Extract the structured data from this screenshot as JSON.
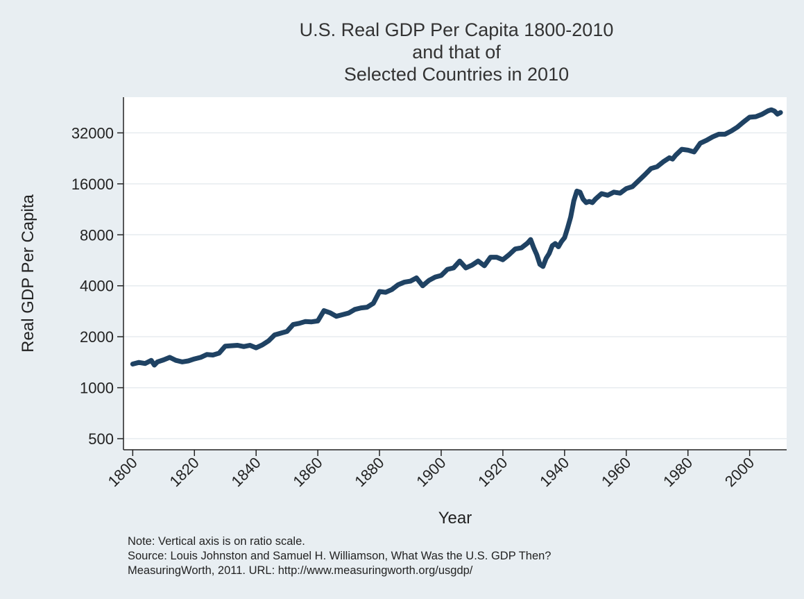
{
  "chart_data": {
    "type": "line",
    "title_lines": [
      "U.S. Real GDP Per Capita 1800-2010",
      "and that of",
      "Selected Countries in 2010"
    ],
    "xlabel": "Year",
    "ylabel": "Real GDP Per Capita",
    "y_scale": "log2",
    "xlim": [
      1797,
      2012
    ],
    "ylim": [
      430,
      52000
    ],
    "x_ticks": [
      1800,
      1820,
      1840,
      1860,
      1880,
      1900,
      1920,
      1940,
      1960,
      1980,
      2000
    ],
    "y_ticks": [
      500,
      1000,
      2000,
      4000,
      8000,
      16000,
      32000
    ],
    "grid": "horizontal",
    "colors": {
      "line": "#1f4263",
      "plot_bg": "#ffffff",
      "page_bg": "#e8eef2",
      "grid": "#e6ebef"
    },
    "series": [
      {
        "x": [
          1800,
          1802,
          1804,
          1806,
          1807,
          1808,
          1810,
          1812,
          1814,
          1816,
          1818,
          1820,
          1822,
          1824,
          1826,
          1828,
          1830,
          1832,
          1834,
          1836,
          1838,
          1840,
          1842,
          1844,
          1846,
          1848,
          1850,
          1852,
          1854,
          1856,
          1858,
          1860,
          1862,
          1864,
          1866,
          1868,
          1870,
          1872,
          1874,
          1876,
          1878,
          1880,
          1882,
          1884,
          1886,
          1888,
          1890,
          1892,
          1894,
          1896,
          1898,
          1900,
          1902,
          1904,
          1906,
          1908,
          1910,
          1912,
          1914,
          1916,
          1918,
          1920,
          1922,
          1924,
          1926,
          1928,
          1929,
          1930,
          1931,
          1932,
          1933,
          1934,
          1935,
          1936,
          1937,
          1938,
          1939,
          1940,
          1941,
          1942,
          1943,
          1944,
          1945,
          1946,
          1947,
          1948,
          1949,
          1950,
          1952,
          1954,
          1956,
          1958,
          1960,
          1962,
          1964,
          1966,
          1968,
          1970,
          1972,
          1974,
          1975,
          1976,
          1978,
          1980,
          1982,
          1984,
          1986,
          1988,
          1990,
          1992,
          1994,
          1996,
          1998,
          2000,
          2002,
          2004,
          2006,
          2007,
          2008,
          2009,
          2010
        ],
        "y": [
          1380,
          1410,
          1390,
          1450,
          1360,
          1420,
          1460,
          1510,
          1450,
          1420,
          1440,
          1480,
          1510,
          1570,
          1560,
          1600,
          1760,
          1770,
          1780,
          1750,
          1780,
          1720,
          1790,
          1890,
          2050,
          2100,
          2150,
          2360,
          2400,
          2460,
          2450,
          2480,
          2850,
          2770,
          2640,
          2700,
          2760,
          2900,
          2960,
          2990,
          3150,
          3700,
          3660,
          3800,
          4050,
          4200,
          4260,
          4450,
          4000,
          4300,
          4500,
          4600,
          5000,
          5100,
          5600,
          5100,
          5300,
          5600,
          5250,
          5900,
          5900,
          5700,
          6100,
          6600,
          6700,
          7150,
          7500,
          6700,
          6100,
          5350,
          5200,
          5800,
          6200,
          6900,
          7100,
          6800,
          7300,
          7700,
          8800,
          10200,
          12700,
          14500,
          14300,
          13000,
          12400,
          12600,
          12400,
          13000,
          14000,
          13700,
          14300,
          14100,
          15000,
          15400,
          16700,
          18100,
          19700,
          20200,
          21600,
          22800,
          22400,
          23600,
          25600,
          25300,
          24700,
          27800,
          28900,
          30300,
          31400,
          31400,
          32800,
          34600,
          37100,
          39600,
          39900,
          41200,
          43200,
          43800,
          43100,
          41300,
          42200
        ]
      }
    ],
    "notes": [
      "Note: Vertical axis is on ratio scale.",
      "Source: Louis Johnston and Samuel H. Williamson, What Was the U.S. GDP Then?",
      "MeasuringWorth, 2011. URL: http://www.measuringworth.org/usgdp/"
    ]
  }
}
